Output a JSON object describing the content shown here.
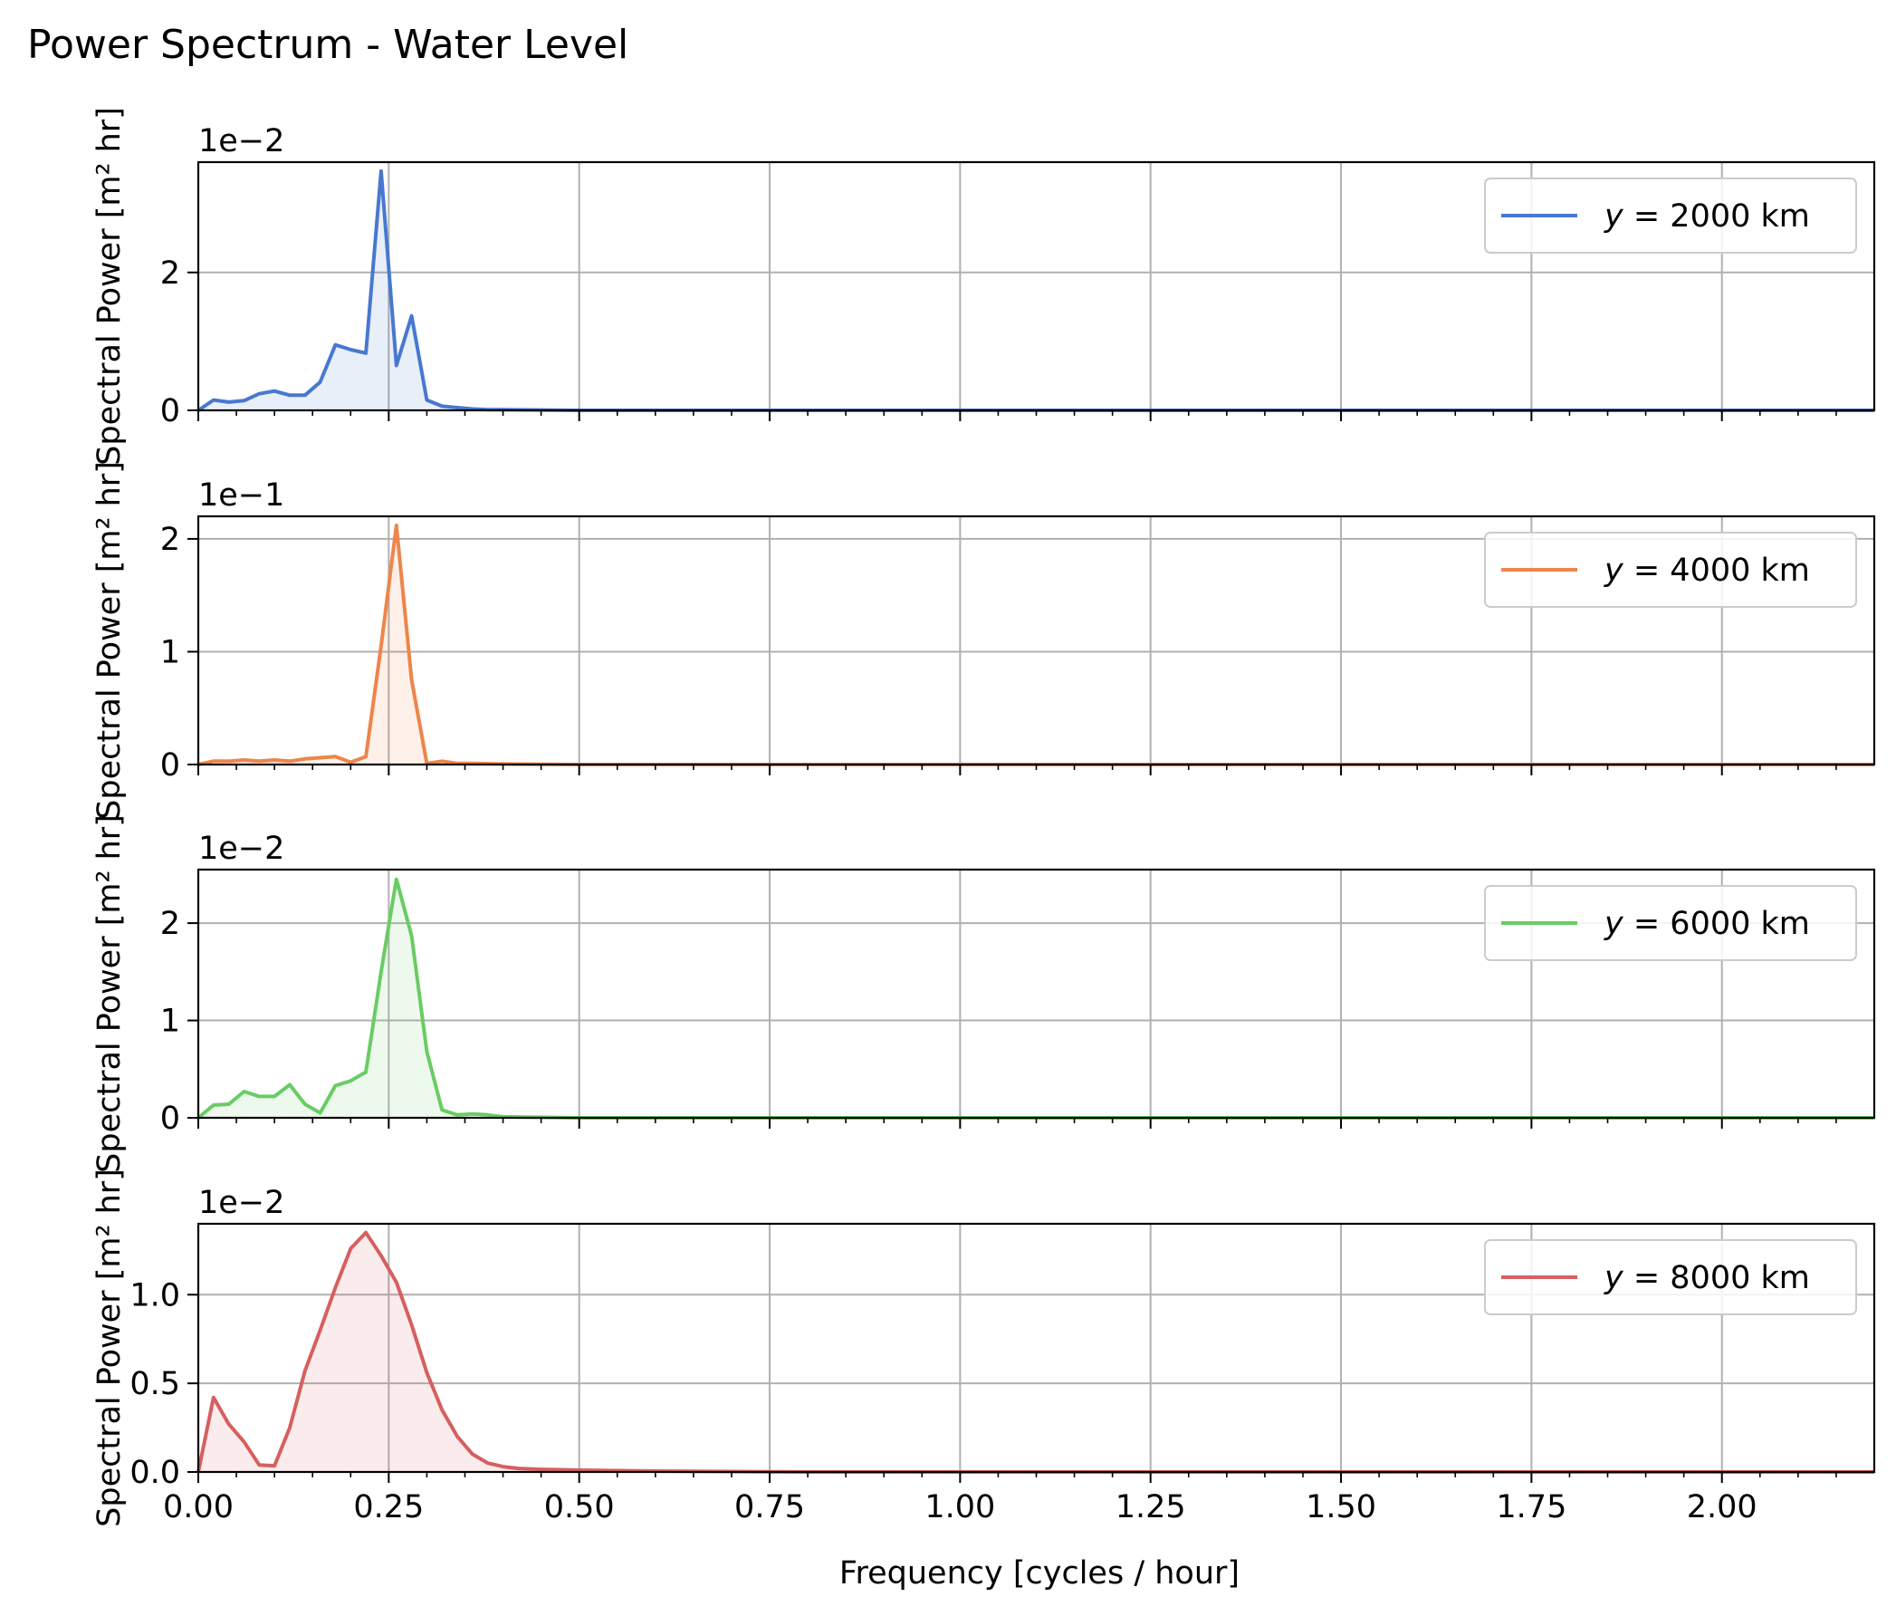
{
  "figure": {
    "suptitle": "Power Spectrum - Water Level",
    "xlabel": "Frequency [cycles / hour]"
  },
  "chart_data": [
    {
      "type": "line",
      "title": "",
      "xlabel": "",
      "ylabel": "Spectral Power [m² hr]",
      "offset_text": "1e−2",
      "multiplier": 0.01,
      "xlim": [
        0,
        2.2
      ],
      "ylim": [
        0,
        3.6
      ],
      "xticks": [
        0.0,
        0.25,
        0.5,
        0.75,
        1.0,
        1.25,
        1.5,
        1.75,
        2.0
      ],
      "yticks": [
        0,
        2
      ],
      "ytick_labels": [
        "0",
        "2"
      ],
      "grid": true,
      "legend_position": "upper right",
      "series": [
        {
          "name": "y = 2000 km",
          "legend_prefix": "y",
          "legend_suffix": " = 2000 km",
          "color": "#4878d0",
          "fill": true,
          "x": [
            0.0,
            0.02,
            0.04,
            0.06,
            0.08,
            0.1,
            0.12,
            0.14,
            0.16,
            0.18,
            0.2,
            0.22,
            0.24,
            0.26,
            0.28,
            0.3,
            0.32,
            0.34,
            0.36,
            0.38,
            0.4,
            0.5,
            1.0,
            1.5,
            2.0,
            2.2
          ],
          "values": [
            0.0,
            0.15,
            0.12,
            0.14,
            0.24,
            0.28,
            0.22,
            0.22,
            0.41,
            0.95,
            0.88,
            0.83,
            3.47,
            0.65,
            1.37,
            0.15,
            0.06,
            0.04,
            0.02,
            0.01,
            0.01,
            0.0,
            0.0,
            0.0,
            0.0,
            0.0
          ]
        }
      ]
    },
    {
      "type": "line",
      "title": "",
      "xlabel": "",
      "ylabel": "Spectral Power [m² hr]",
      "offset_text": "1e−1",
      "multiplier": 0.1,
      "xlim": [
        0,
        2.2
      ],
      "ylim": [
        0,
        2.2
      ],
      "xticks": [
        0.0,
        0.25,
        0.5,
        0.75,
        1.0,
        1.25,
        1.5,
        1.75,
        2.0
      ],
      "yticks": [
        0,
        1,
        2
      ],
      "ytick_labels": [
        "0",
        "1",
        "2"
      ],
      "grid": true,
      "legend_position": "upper right",
      "series": [
        {
          "name": "y = 4000 km",
          "legend_prefix": "y",
          "legend_suffix": " = 4000 km",
          "color": "#ee854a",
          "fill": true,
          "x": [
            0.0,
            0.02,
            0.04,
            0.06,
            0.08,
            0.1,
            0.12,
            0.14,
            0.16,
            0.18,
            0.2,
            0.22,
            0.24,
            0.26,
            0.28,
            0.3,
            0.32,
            0.34,
            0.36,
            0.4,
            0.5,
            1.0,
            1.5,
            2.0,
            2.2
          ],
          "values": [
            0.0,
            0.03,
            0.03,
            0.04,
            0.03,
            0.04,
            0.03,
            0.05,
            0.06,
            0.07,
            0.02,
            0.07,
            1.05,
            2.12,
            0.75,
            0.01,
            0.03,
            0.01,
            0.01,
            0.005,
            0.0,
            0.0,
            0.0,
            0.0,
            0.0
          ]
        }
      ]
    },
    {
      "type": "line",
      "title": "",
      "xlabel": "",
      "ylabel": "Spectral Power [m² hr]",
      "offset_text": "1e−2",
      "multiplier": 0.01,
      "xlim": [
        0,
        2.2
      ],
      "ylim": [
        0,
        2.55
      ],
      "xticks": [
        0.0,
        0.25,
        0.5,
        0.75,
        1.0,
        1.25,
        1.5,
        1.75,
        2.0
      ],
      "yticks": [
        0,
        1,
        2
      ],
      "ytick_labels": [
        "0",
        "1",
        "2"
      ],
      "grid": true,
      "legend_position": "upper right",
      "series": [
        {
          "name": "y = 6000 km",
          "legend_prefix": "y",
          "legend_suffix": " = 6000 km",
          "color": "#6acc64",
          "fill": true,
          "x": [
            0.0,
            0.02,
            0.04,
            0.06,
            0.08,
            0.1,
            0.12,
            0.14,
            0.16,
            0.18,
            0.2,
            0.22,
            0.24,
            0.26,
            0.28,
            0.3,
            0.32,
            0.34,
            0.36,
            0.38,
            0.4,
            0.5,
            1.0,
            1.5,
            2.0,
            2.2
          ],
          "values": [
            0.0,
            0.13,
            0.14,
            0.27,
            0.22,
            0.22,
            0.34,
            0.14,
            0.05,
            0.33,
            0.38,
            0.47,
            1.5,
            2.45,
            1.87,
            0.68,
            0.08,
            0.03,
            0.04,
            0.03,
            0.01,
            0.0,
            0.0,
            0.0,
            0.0,
            0.0
          ]
        }
      ]
    },
    {
      "type": "line",
      "title": "",
      "xlabel": "Frequency [cycles / hour]",
      "ylabel": "Spectral Power [m² hr]",
      "offset_text": "1e−2",
      "multiplier": 0.01,
      "xlim": [
        0,
        2.2
      ],
      "ylim": [
        0,
        1.4
      ],
      "xticks": [
        0.0,
        0.25,
        0.5,
        0.75,
        1.0,
        1.25,
        1.5,
        1.75,
        2.0
      ],
      "xtick_labels": [
        "0.00",
        "0.25",
        "0.50",
        "0.75",
        "1.00",
        "1.25",
        "1.50",
        "1.75",
        "2.00"
      ],
      "yticks": [
        0,
        0.5,
        1.0
      ],
      "ytick_labels": [
        "0.0",
        "0.5",
        "1.0"
      ],
      "grid": true,
      "legend_position": "upper right",
      "series": [
        {
          "name": "y = 8000 km",
          "legend_prefix": "y",
          "legend_suffix": " = 8000 km",
          "color": "#d65f5f",
          "fill": true,
          "x": [
            0.0,
            0.02,
            0.04,
            0.06,
            0.08,
            0.1,
            0.12,
            0.14,
            0.16,
            0.18,
            0.2,
            0.22,
            0.24,
            0.26,
            0.28,
            0.3,
            0.32,
            0.34,
            0.36,
            0.38,
            0.4,
            0.42,
            0.45,
            0.5,
            0.6,
            0.8,
            1.0,
            1.5,
            2.0,
            2.2
          ],
          "values": [
            0.0,
            0.42,
            0.27,
            0.17,
            0.04,
            0.035,
            0.25,
            0.57,
            0.8,
            1.04,
            1.26,
            1.35,
            1.22,
            1.07,
            0.83,
            0.56,
            0.35,
            0.2,
            0.1,
            0.05,
            0.03,
            0.02,
            0.015,
            0.01,
            0.005,
            0.0,
            0.0,
            0.0,
            0.0,
            0.0
          ]
        }
      ]
    }
  ]
}
